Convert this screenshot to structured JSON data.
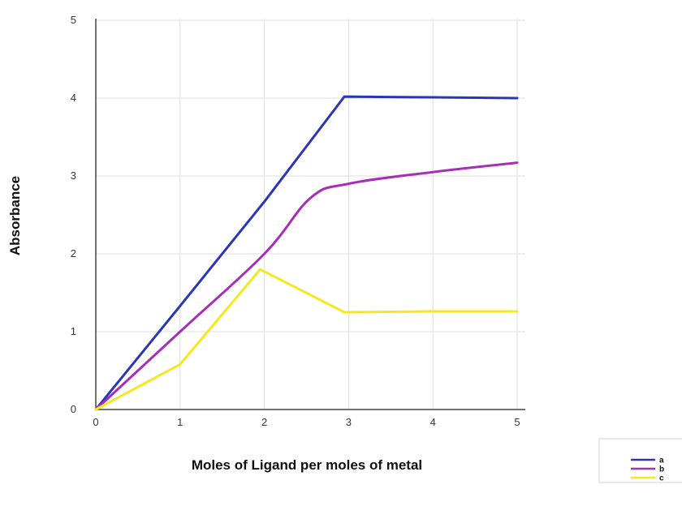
{
  "chart_data": {
    "type": "line",
    "title": "",
    "xlabel": "Moles of Ligand per moles of metal",
    "ylabel": "Absorbance",
    "xlim": [
      0,
      5
    ],
    "ylim": [
      0,
      5
    ],
    "x_ticks": [
      "0",
      "1",
      "2",
      "3",
      "4",
      "5"
    ],
    "y_ticks": [
      "0",
      "1",
      "2",
      "3",
      "4",
      "5"
    ],
    "grid": true,
    "legend_position": "bottom-right",
    "series": [
      {
        "name": "a",
        "color": "#2b35b8",
        "smooth": false,
        "points": [
          [
            0,
            0
          ],
          [
            1,
            1.33
          ],
          [
            2,
            2.67
          ],
          [
            2.95,
            4.02
          ],
          [
            4,
            4.01
          ],
          [
            5,
            4.0
          ]
        ]
      },
      {
        "name": "b",
        "color": "#a62fb8",
        "smooth": true,
        "points": [
          [
            0,
            0
          ],
          [
            1,
            1.0
          ],
          [
            2,
            2.0
          ],
          [
            2.55,
            2.72
          ],
          [
            3,
            2.9
          ],
          [
            4,
            3.05
          ],
          [
            5,
            3.17
          ]
        ]
      },
      {
        "name": "c",
        "color": "#f5e81c",
        "smooth": false,
        "points": [
          [
            0,
            0
          ],
          [
            1,
            0.58
          ],
          [
            1.95,
            1.8
          ],
          [
            2.95,
            1.25
          ],
          [
            4,
            1.26
          ],
          [
            5,
            1.26
          ]
        ]
      }
    ]
  }
}
